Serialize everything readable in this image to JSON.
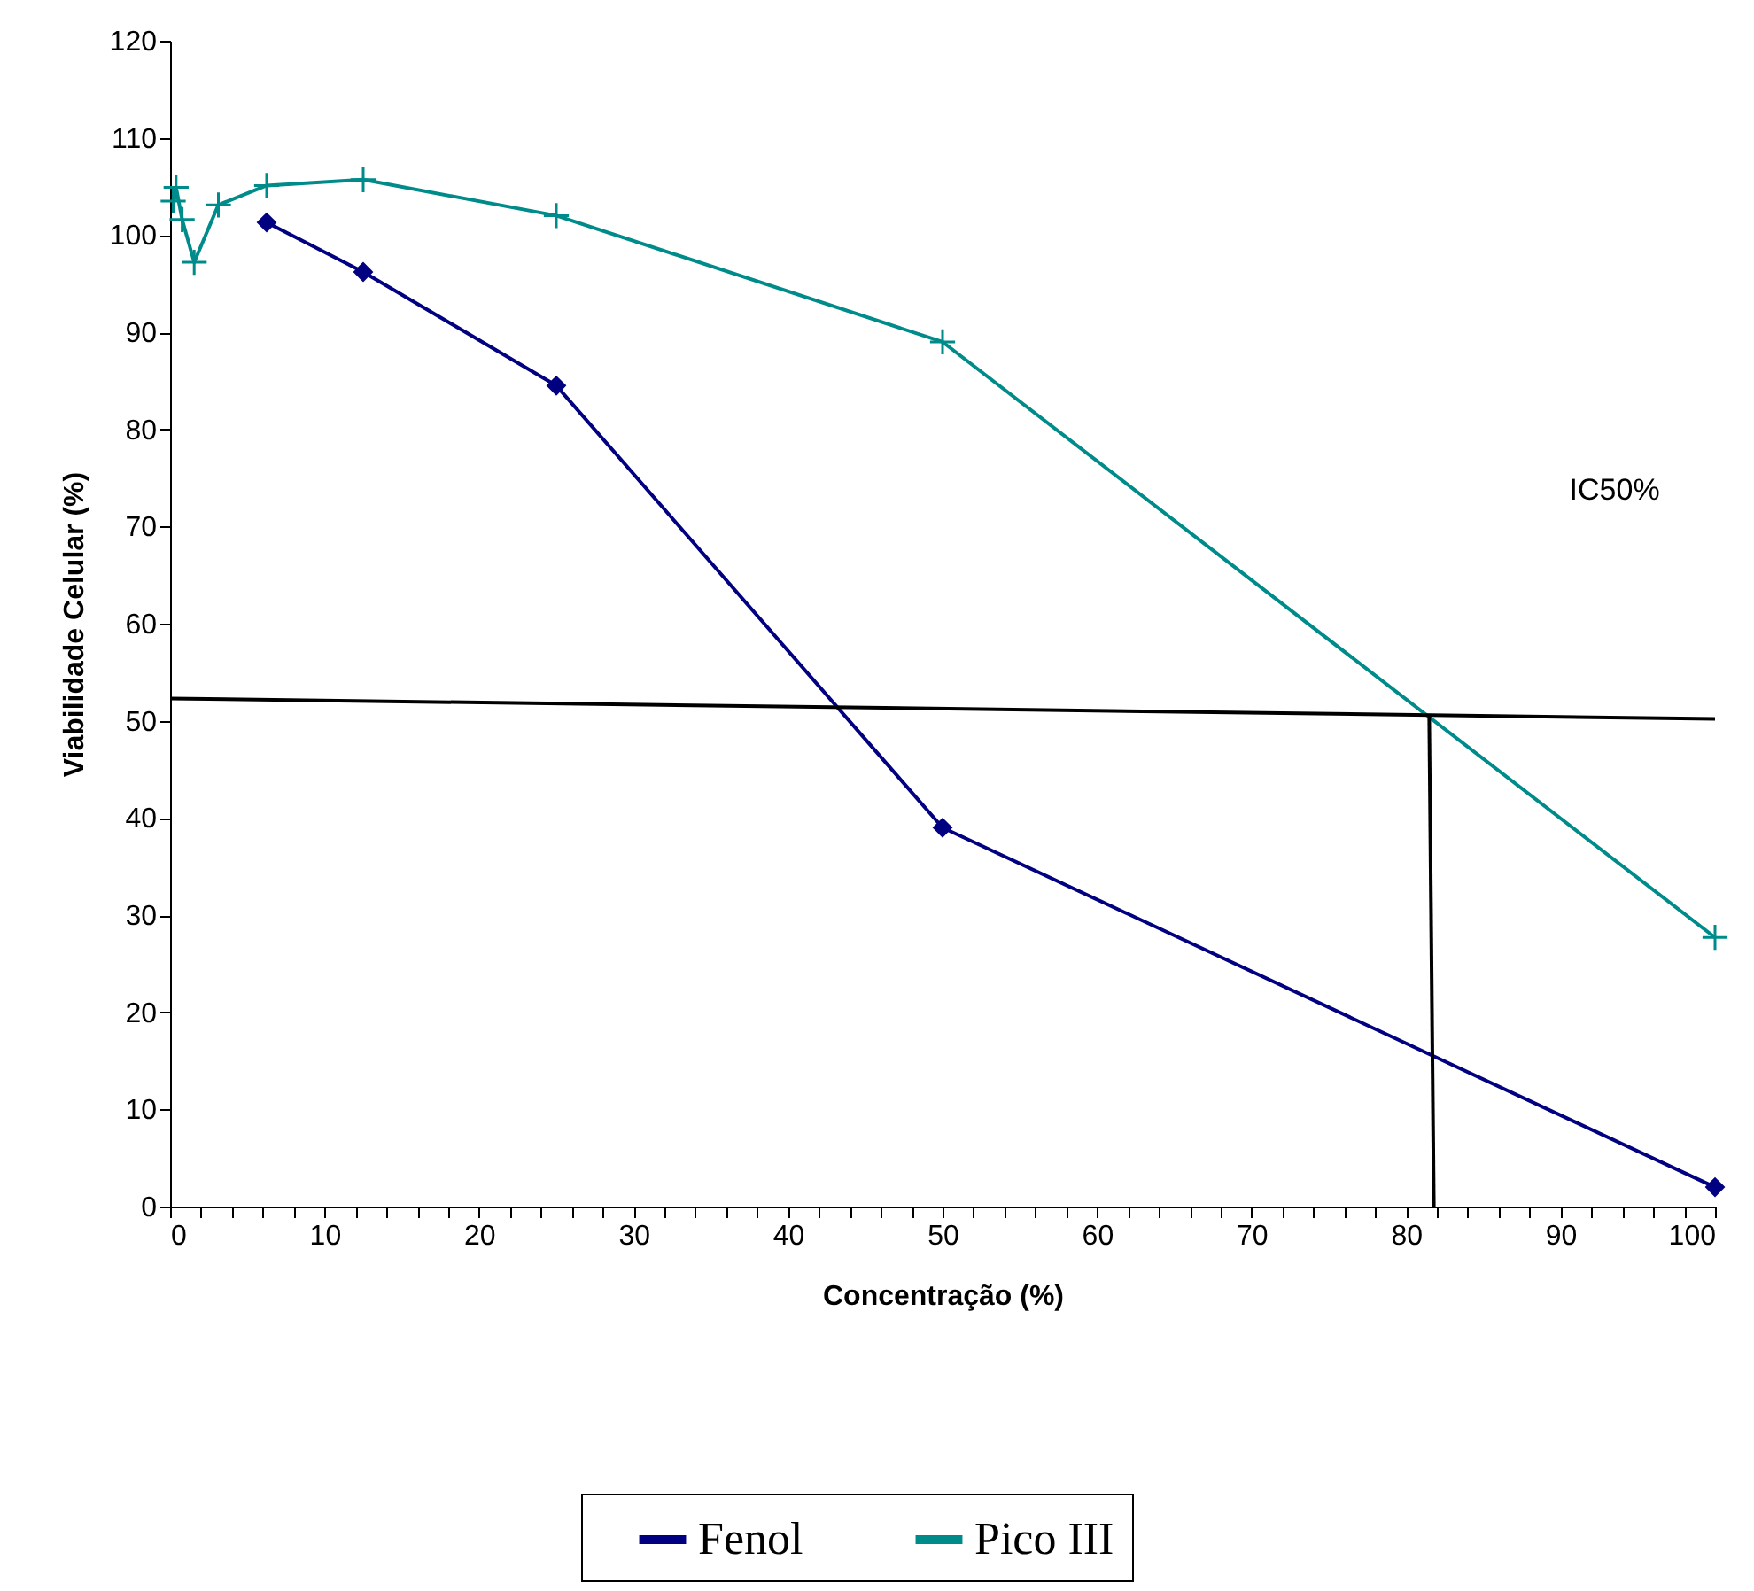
{
  "chart_data": {
    "type": "line",
    "xlabel": "Concentração (%)",
    "ylabel": "Viabilidade Celular (%)",
    "xlim": [
      0,
      100
    ],
    "ylim": [
      0,
      120
    ],
    "xticks": [
      0,
      {
        "value": 2,
        "label": null
      },
      {
        "value": 4,
        "label": null
      },
      {
        "value": 6,
        "label": null
      },
      {
        "value": 8,
        "label": null
      },
      10,
      {
        "value": 12,
        "label": null
      },
      {
        "value": 14,
        "label": null
      },
      {
        "value": 16,
        "label": null
      },
      {
        "value": 18,
        "label": null
      },
      20,
      {
        "value": 22,
        "label": null
      },
      {
        "value": 24,
        "label": null
      },
      {
        "value": 26,
        "label": null
      },
      {
        "value": 28,
        "label": null
      },
      30,
      {
        "value": 32,
        "label": null
      },
      {
        "value": 34,
        "label": null
      },
      {
        "value": 36,
        "label": null
      },
      {
        "value": 38,
        "label": null
      },
      40,
      {
        "value": 42,
        "label": null
      },
      {
        "value": 44,
        "label": null
      },
      {
        "value": 46,
        "label": null
      },
      {
        "value": 48,
        "label": null
      },
      50,
      {
        "value": 52,
        "label": null
      },
      {
        "value": 54,
        "label": null
      },
      {
        "value": 56,
        "label": null
      },
      {
        "value": 58,
        "label": null
      },
      60,
      {
        "value": 62,
        "label": null
      },
      {
        "value": 64,
        "label": null
      },
      {
        "value": 66,
        "label": null
      },
      {
        "value": 68,
        "label": null
      },
      70,
      {
        "value": 72,
        "label": null
      },
      {
        "value": 74,
        "label": null
      },
      {
        "value": 76,
        "label": null
      },
      {
        "value": 78,
        "label": null
      },
      80,
      {
        "value": 82,
        "label": null
      },
      {
        "value": 84,
        "label": null
      },
      {
        "value": 86,
        "label": null
      },
      {
        "value": 88,
        "label": null
      },
      90,
      {
        "value": 92,
        "label": null
      },
      {
        "value": 94,
        "label": null
      },
      {
        "value": 96,
        "label": null
      },
      {
        "value": 98,
        "label": null
      },
      100
    ],
    "yticks": [
      0,
      10,
      20,
      30,
      40,
      50,
      60,
      70,
      80,
      90,
      100,
      110,
      120
    ],
    "grid": false,
    "legend": "bottom",
    "series": [
      {
        "name": "Fenol",
        "color": "#000080",
        "marker": "diamond",
        "x": [
          6.25,
          12.5,
          25,
          50,
          100
        ],
        "values": [
          101.3,
          96.2,
          84.5,
          39,
          2
        ]
      },
      {
        "name": "Pico III",
        "color": "#008b8b",
        "marker": "cross",
        "x": [
          0.2,
          0.39,
          0.78,
          1.56,
          3.125,
          6.25,
          12.5,
          25,
          50,
          100
        ],
        "values": [
          103.5,
          104.9,
          101.6,
          97.2,
          103.1,
          105.1,
          105.7,
          102,
          89,
          27.7
        ]
      },
      {
        "color": "#000000",
        "marker": "none",
        "x": [
          0,
          100
        ],
        "values": [
          52.3,
          50.2
        ]
      },
      {
        "color": "#000000",
        "marker": "none",
        "x": [
          81.5,
          81.8
        ],
        "values": [
          50.5,
          0
        ]
      }
    ],
    "annotations": [
      "IC50%"
    ]
  }
}
